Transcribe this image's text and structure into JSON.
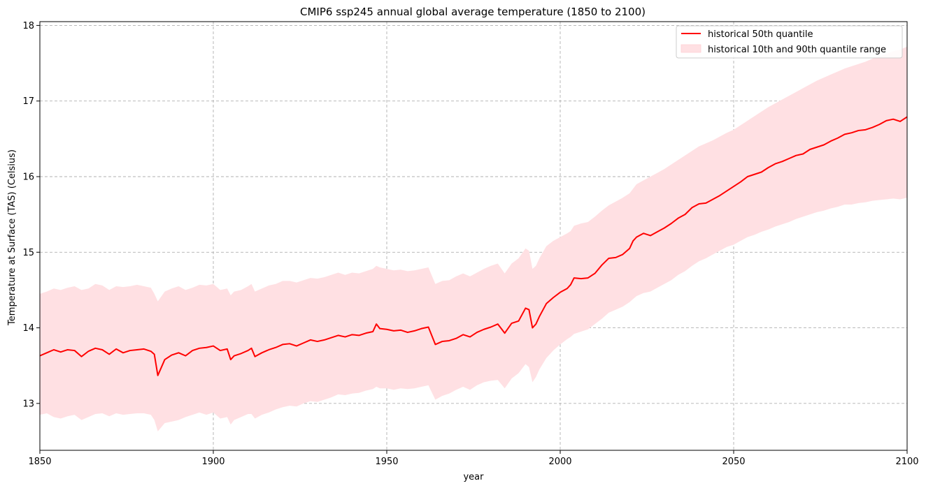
{
  "chart_data": {
    "type": "line",
    "title": "CMIP6 ssp245 annual global average temperature (1850 to 2100)",
    "xlabel": "year",
    "ylabel": "Temperature at Surface (TAS) (Celsius)",
    "xlim": [
      1850,
      2100
    ],
    "ylim": [
      12.38,
      18.05
    ],
    "xticks": [
      1850,
      1900,
      1950,
      2000,
      2050,
      2100
    ],
    "yticks": [
      13,
      14,
      15,
      16,
      17,
      18
    ],
    "grid": true,
    "legend_position": "top-right",
    "colors": {
      "line": "#ff0000",
      "band": "#ffe0e3"
    },
    "series": [
      {
        "name": "historical 50th quantile",
        "kind": "line",
        "x": [
          1850,
          1852,
          1854,
          1856,
          1858,
          1860,
          1862,
          1864,
          1866,
          1868,
          1870,
          1872,
          1874,
          1876,
          1878,
          1880,
          1882,
          1883,
          1884,
          1886,
          1888,
          1890,
          1892,
          1894,
          1896,
          1898,
          1900,
          1902,
          1904,
          1905,
          1906,
          1908,
          1910,
          1911,
          1912,
          1914,
          1916,
          1918,
          1920,
          1922,
          1924,
          1926,
          1928,
          1930,
          1932,
          1934,
          1936,
          1938,
          1940,
          1942,
          1944,
          1946,
          1947,
          1948,
          1950,
          1952,
          1954,
          1956,
          1958,
          1960,
          1962,
          1964,
          1966,
          1968,
          1970,
          1972,
          1974,
          1976,
          1978,
          1980,
          1982,
          1984,
          1986,
          1988,
          1990,
          1991,
          1992,
          1993,
          1994,
          1996,
          1998,
          2000,
          2002,
          2003,
          2004,
          2006,
          2008,
          2010,
          2012,
          2014,
          2016,
          2018,
          2020,
          2021,
          2022,
          2024,
          2026,
          2028,
          2030,
          2032,
          2034,
          2036,
          2038,
          2040,
          2042,
          2044,
          2046,
          2048,
          2050,
          2052,
          2054,
          2056,
          2058,
          2060,
          2062,
          2064,
          2066,
          2068,
          2070,
          2072,
          2074,
          2076,
          2078,
          2080,
          2082,
          2084,
          2086,
          2088,
          2090,
          2092,
          2094,
          2096,
          2098,
          2100
        ],
        "values": [
          13.63,
          13.67,
          13.71,
          13.68,
          13.71,
          13.7,
          13.62,
          13.69,
          13.73,
          13.71,
          13.65,
          13.72,
          13.67,
          13.7,
          13.71,
          13.72,
          13.69,
          13.65,
          13.37,
          13.58,
          13.64,
          13.67,
          13.63,
          13.7,
          13.73,
          13.74,
          13.76,
          13.7,
          13.72,
          13.58,
          13.63,
          13.66,
          13.7,
          13.73,
          13.62,
          13.67,
          13.71,
          13.74,
          13.78,
          13.79,
          13.76,
          13.8,
          13.84,
          13.82,
          13.84,
          13.87,
          13.9,
          13.88,
          13.91,
          13.9,
          13.93,
          13.95,
          14.05,
          13.99,
          13.98,
          13.96,
          13.97,
          13.94,
          13.96,
          13.99,
          14.01,
          13.78,
          13.82,
          13.83,
          13.86,
          13.91,
          13.88,
          13.94,
          13.98,
          14.01,
          14.05,
          13.93,
          14.06,
          14.09,
          14.26,
          14.24,
          14.0,
          14.05,
          14.15,
          14.32,
          14.4,
          14.47,
          14.52,
          14.57,
          14.66,
          14.65,
          14.66,
          14.72,
          14.83,
          14.92,
          14.93,
          14.97,
          15.05,
          15.15,
          15.2,
          15.25,
          15.22,
          15.27,
          15.32,
          15.38,
          15.45,
          15.5,
          15.59,
          15.64,
          15.65,
          15.7,
          15.75,
          15.81,
          15.87,
          15.93,
          16.0,
          16.03,
          16.06,
          16.12,
          16.17,
          16.2,
          16.24,
          16.28,
          16.3,
          16.36,
          16.39,
          16.42,
          16.47,
          16.51,
          16.56,
          16.58,
          16.61,
          16.62,
          16.65,
          16.69,
          16.74,
          16.76,
          16.73,
          16.79
        ]
      },
      {
        "name": "historical 10th and 90th quantile range",
        "kind": "band",
        "x": [
          1850,
          1852,
          1854,
          1856,
          1858,
          1860,
          1862,
          1864,
          1866,
          1868,
          1870,
          1872,
          1874,
          1876,
          1878,
          1880,
          1882,
          1883,
          1884,
          1886,
          1888,
          1890,
          1892,
          1894,
          1896,
          1898,
          1900,
          1902,
          1904,
          1905,
          1906,
          1908,
          1910,
          1911,
          1912,
          1914,
          1916,
          1918,
          1920,
          1922,
          1924,
          1926,
          1928,
          1930,
          1932,
          1934,
          1936,
          1938,
          1940,
          1942,
          1944,
          1946,
          1947,
          1948,
          1950,
          1952,
          1954,
          1956,
          1958,
          1960,
          1962,
          1964,
          1966,
          1968,
          1970,
          1972,
          1974,
          1976,
          1978,
          1980,
          1982,
          1984,
          1986,
          1988,
          1990,
          1991,
          1992,
          1993,
          1994,
          1996,
          1998,
          2000,
          2002,
          2003,
          2004,
          2006,
          2008,
          2010,
          2012,
          2014,
          2016,
          2018,
          2020,
          2021,
          2022,
          2024,
          2026,
          2028,
          2030,
          2032,
          2034,
          2036,
          2038,
          2040,
          2042,
          2044,
          2046,
          2048,
          2050,
          2052,
          2054,
          2056,
          2058,
          2060,
          2062,
          2064,
          2066,
          2068,
          2070,
          2072,
          2074,
          2076,
          2078,
          2080,
          2082,
          2084,
          2086,
          2088,
          2090,
          2092,
          2094,
          2096,
          2098,
          2100
        ],
        "lower": [
          12.85,
          12.87,
          12.82,
          12.8,
          12.83,
          12.85,
          12.78,
          12.82,
          12.86,
          12.87,
          12.83,
          12.87,
          12.85,
          12.86,
          12.87,
          12.87,
          12.85,
          12.78,
          12.63,
          12.74,
          12.76,
          12.78,
          12.82,
          12.85,
          12.88,
          12.85,
          12.88,
          12.8,
          12.82,
          12.72,
          12.78,
          12.82,
          12.86,
          12.86,
          12.8,
          12.85,
          12.88,
          12.92,
          12.95,
          12.97,
          12.96,
          13.0,
          13.03,
          13.02,
          13.05,
          13.08,
          13.12,
          13.11,
          13.13,
          13.14,
          13.17,
          13.19,
          13.22,
          13.2,
          13.2,
          13.18,
          13.2,
          13.19,
          13.2,
          13.22,
          13.24,
          13.05,
          13.1,
          13.13,
          13.18,
          13.22,
          13.18,
          13.24,
          13.28,
          13.3,
          13.31,
          13.2,
          13.33,
          13.4,
          13.52,
          13.48,
          13.28,
          13.35,
          13.45,
          13.6,
          13.7,
          13.78,
          13.85,
          13.88,
          13.92,
          13.95,
          13.98,
          14.05,
          14.12,
          14.2,
          14.24,
          14.28,
          14.34,
          14.38,
          14.42,
          14.46,
          14.48,
          14.53,
          14.58,
          14.63,
          14.7,
          14.75,
          14.82,
          14.88,
          14.92,
          14.97,
          15.02,
          15.07,
          15.1,
          15.15,
          15.2,
          15.23,
          15.27,
          15.3,
          15.34,
          15.37,
          15.4,
          15.44,
          15.47,
          15.5,
          15.53,
          15.55,
          15.58,
          15.6,
          15.63,
          15.63,
          15.65,
          15.66,
          15.68,
          15.69,
          15.7,
          15.71,
          15.7,
          15.72
        ],
        "upper": [
          14.45,
          14.48,
          14.52,
          14.5,
          14.53,
          14.55,
          14.5,
          14.52,
          14.58,
          14.56,
          14.5,
          14.55,
          14.54,
          14.55,
          14.57,
          14.55,
          14.53,
          14.45,
          14.35,
          14.48,
          14.52,
          14.55,
          14.5,
          14.53,
          14.57,
          14.56,
          14.58,
          14.5,
          14.52,
          14.43,
          14.48,
          14.5,
          14.55,
          14.58,
          14.48,
          14.52,
          14.56,
          14.58,
          14.62,
          14.62,
          14.6,
          14.63,
          14.66,
          14.65,
          14.67,
          14.7,
          14.73,
          14.7,
          14.73,
          14.72,
          14.75,
          14.78,
          14.82,
          14.8,
          14.78,
          14.76,
          14.77,
          14.75,
          14.76,
          14.78,
          14.8,
          14.58,
          14.62,
          14.63,
          14.68,
          14.72,
          14.68,
          14.73,
          14.78,
          14.82,
          14.85,
          14.72,
          14.85,
          14.92,
          15.05,
          15.02,
          14.78,
          14.82,
          14.92,
          15.08,
          15.15,
          15.2,
          15.25,
          15.28,
          15.35,
          15.38,
          15.4,
          15.47,
          15.55,
          15.62,
          15.67,
          15.72,
          15.78,
          15.84,
          15.9,
          15.95,
          16.0,
          16.05,
          16.1,
          16.16,
          16.22,
          16.28,
          16.34,
          16.4,
          16.44,
          16.48,
          16.53,
          16.58,
          16.62,
          16.68,
          16.74,
          16.8,
          16.86,
          16.92,
          16.97,
          17.02,
          17.07,
          17.12,
          17.17,
          17.22,
          17.27,
          17.31,
          17.35,
          17.39,
          17.43,
          17.46,
          17.49,
          17.52,
          17.56,
          17.59,
          17.62,
          17.66,
          17.68,
          17.72
        ]
      }
    ]
  }
}
